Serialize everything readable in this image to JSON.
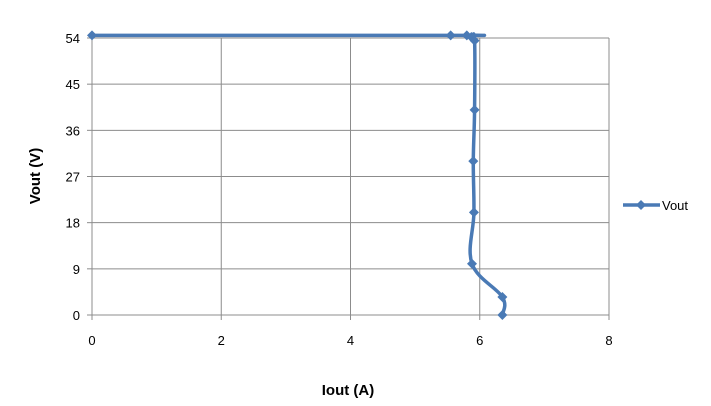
{
  "chart_data": {
    "type": "line",
    "xlabel": "Iout (A)",
    "ylabel": "Vout (V)",
    "xlim": [
      0,
      8
    ],
    "ylim": [
      0,
      54
    ],
    "xticks": [
      0,
      2,
      4,
      6,
      8
    ],
    "yticks": [
      0,
      9,
      18,
      27,
      36,
      45,
      54
    ],
    "grid": true,
    "legend_position": "right",
    "series": [
      {
        "name": "Vout",
        "color": "#4a7ab5",
        "marker": "diamond",
        "points": [
          {
            "x": 0,
            "y": 54.5
          },
          {
            "x": 5.55,
            "y": 54.5
          },
          {
            "x": 5.8,
            "y": 54.5
          },
          {
            "x": 5.87,
            "y": 54.2
          },
          {
            "x": 5.92,
            "y": 53.5
          },
          {
            "x": 5.92,
            "y": 40
          },
          {
            "x": 5.9,
            "y": 30
          },
          {
            "x": 5.91,
            "y": 20
          },
          {
            "x": 5.88,
            "y": 10
          },
          {
            "x": 6.35,
            "y": 3.5
          },
          {
            "x": 6.35,
            "y": 0
          }
        ]
      }
    ]
  }
}
